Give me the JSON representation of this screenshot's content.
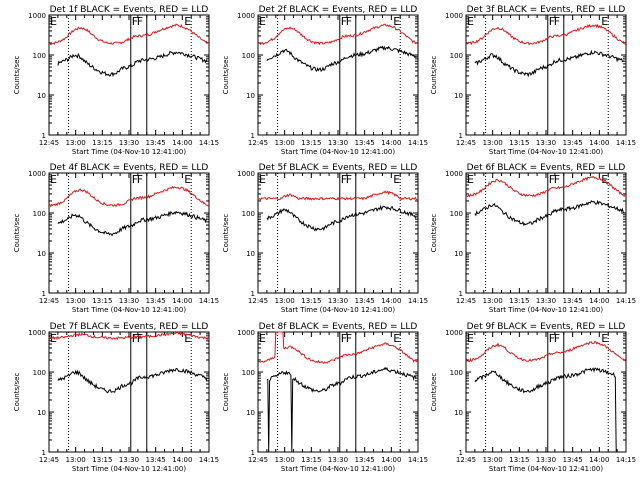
{
  "chart_data": {
    "type": "line",
    "x_tick_labels": [
      "12:45",
      "13:00",
      "13:15",
      "13:30",
      "13:45",
      "14:00",
      "14:15"
    ],
    "x_ticks_min": [
      0,
      15,
      30,
      45,
      60,
      75,
      90
    ],
    "xlim_min": [
      0,
      90
    ],
    "y_tick_labels": [
      "1",
      "10",
      "100",
      "1000"
    ],
    "y_tick_values": [
      1,
      10,
      100,
      1000
    ],
    "ylim": [
      1,
      1000
    ],
    "ylabel": "Counts/sec",
    "xlabel": "Start Time (04-Nov-10 12:41:00)",
    "annotation_labels": [
      "E",
      "F",
      "F",
      "E"
    ],
    "dotted_lines_min": [
      11,
      80
    ],
    "solid_lines_min": [
      46,
      55
    ],
    "colors": {
      "events": "#000000",
      "lld": "#e0191c"
    },
    "panels": [
      {
        "title": "Det 1f BLACK = Events, RED = LLD",
        "kind": "std",
        "red_scale": 1.0,
        "black_scale": 1.0
      },
      {
        "title": "Det 2f BLACK = Events, RED = LLD",
        "kind": "std",
        "red_scale": 1.0,
        "black_scale": 1.3
      },
      {
        "title": "Det 3f BLACK = Events, RED = LLD",
        "kind": "std",
        "red_scale": 1.0,
        "black_scale": 1.0
      },
      {
        "title": "Det 4f BLACK = Events, RED = LLD",
        "kind": "std",
        "red_scale": 0.8,
        "black_scale": 0.9
      },
      {
        "title": "Det 5f BLACK = Events, RED = LLD",
        "kind": "flat",
        "red_scale": 0.6,
        "black_scale": 1.2
      },
      {
        "title": "Det 6f BLACK = Events, RED = LLD",
        "kind": "std",
        "red_scale": 1.4,
        "black_scale": 1.6
      },
      {
        "title": "Det 7f BLACK = Events, RED = LLD",
        "kind": "high",
        "red_scale": 1.0,
        "black_scale": 1.0
      },
      {
        "title": "Det 8f BLACK = Events, RED = LLD",
        "kind": "spike",
        "red_scale": 0.9,
        "black_scale": 1.0
      },
      {
        "title": "Det 9f BLACK = Events, RED = LLD",
        "kind": "drop",
        "red_scale": 1.0,
        "black_scale": 1.0
      }
    ],
    "series": [
      {
        "name": "Events",
        "key": "black",
        "points_min": [
          5,
          8,
          11,
          14,
          17,
          20,
          23,
          26,
          29,
          32,
          35,
          38,
          41,
          44,
          47,
          50,
          53,
          56,
          59,
          62,
          65,
          68,
          72,
          76,
          80,
          85,
          89
        ],
        "values": [
          60,
          70,
          80,
          100,
          95,
          70,
          55,
          45,
          38,
          34,
          33,
          36,
          45,
          50,
          55,
          70,
          75,
          78,
          82,
          88,
          98,
          110,
          118,
          108,
          96,
          80,
          70
        ]
      },
      {
        "name": "LLD",
        "key": "red",
        "points_min": [
          0,
          3,
          6,
          9,
          12,
          15,
          18,
          21,
          24,
          27,
          30,
          33,
          36,
          39,
          42,
          45,
          48,
          51,
          54,
          57,
          60,
          63,
          66,
          69,
          72,
          75,
          78,
          81,
          84,
          87,
          90
        ],
        "values": [
          190,
          200,
          220,
          260,
          350,
          440,
          480,
          430,
          330,
          260,
          220,
          200,
          195,
          200,
          215,
          250,
          290,
          300,
          310,
          330,
          380,
          430,
          480,
          530,
          560,
          520,
          450,
          360,
          280,
          220,
          190
        ]
      }
    ]
  }
}
